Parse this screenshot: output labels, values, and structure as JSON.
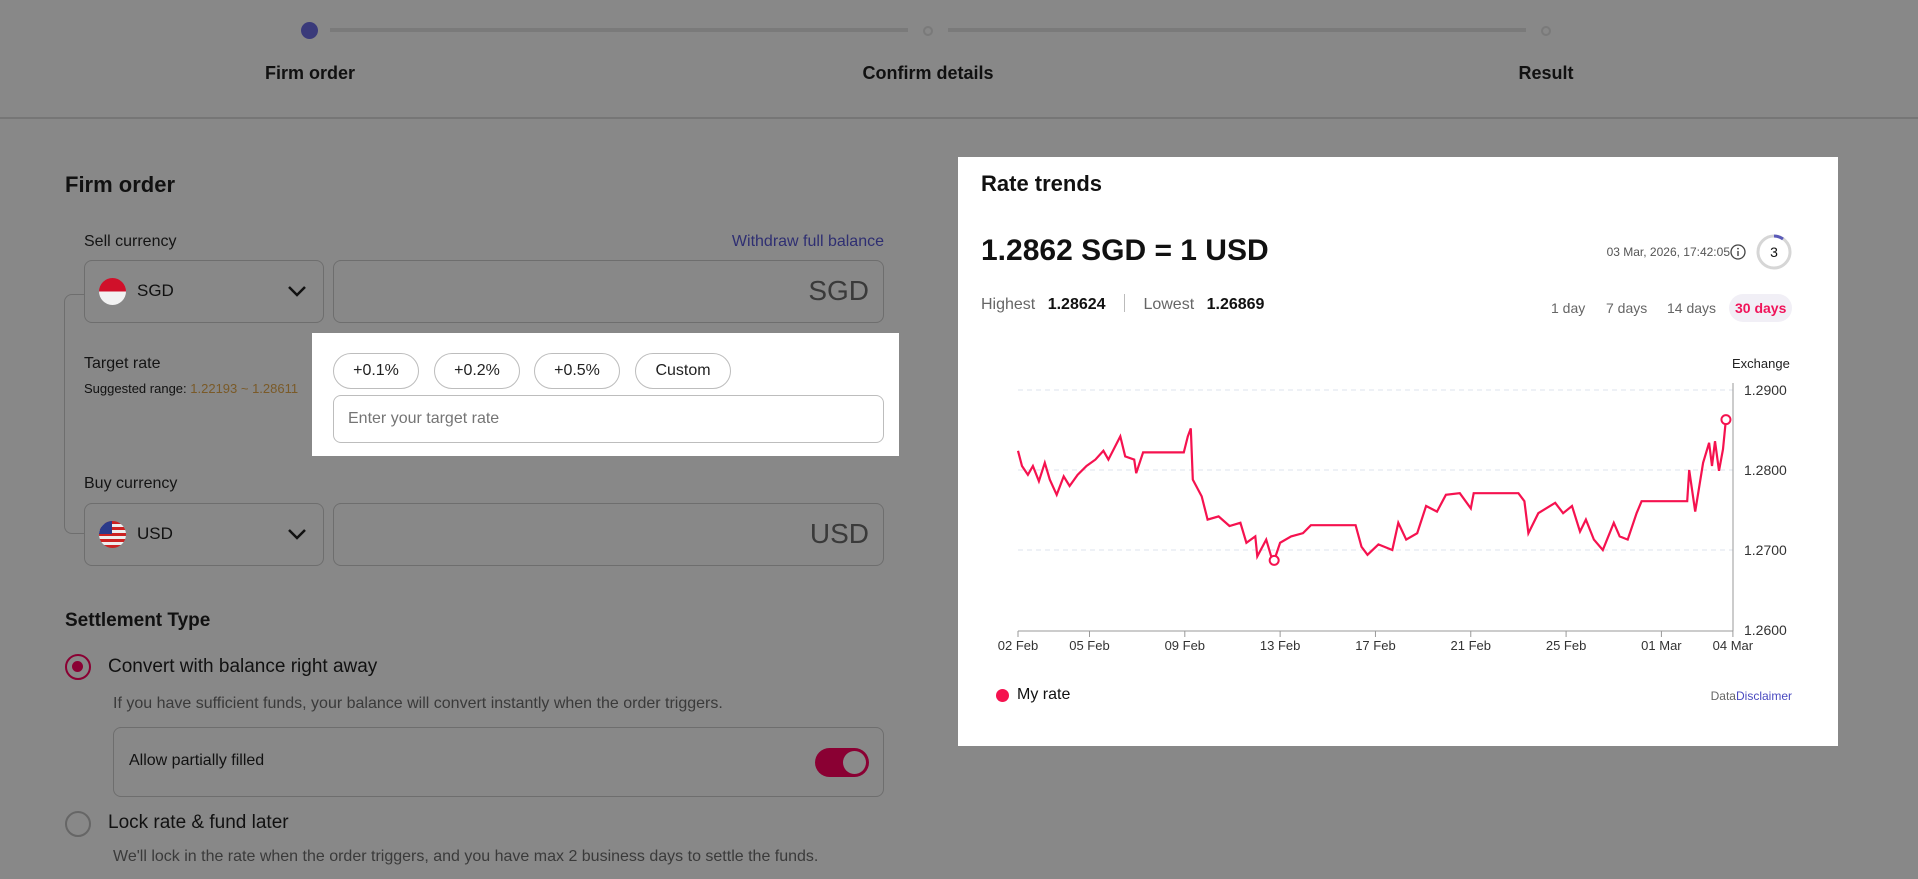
{
  "stepper": {
    "steps": [
      {
        "label": "Firm order",
        "active": true
      },
      {
        "label": "Confirm details",
        "active": false
      },
      {
        "label": "Result",
        "active": false
      }
    ]
  },
  "form": {
    "title": "Firm order",
    "sell": {
      "label": "Sell currency",
      "withdraw_link": "Withdraw full balance",
      "currency": "SGD",
      "amount_placeholder": "SGD",
      "flag_icon": "singapore-flag-icon"
    },
    "target": {
      "label": "Target rate",
      "suggested_prefix": "Suggested range:",
      "suggested_range": "1.22193 ~ 1.28611",
      "chips": [
        "+0.1%",
        "+0.2%",
        "+0.5%",
        "Custom"
      ],
      "placeholder": "Enter your target rate"
    },
    "buy": {
      "label": "Buy currency",
      "currency": "USD",
      "amount_placeholder": "USD",
      "flag_icon": "us-flag-icon"
    },
    "settlement": {
      "title": "Settlement Type",
      "options": [
        {
          "label": "Convert with balance right away",
          "desc": "If you have sufficient funds, your balance will convert instantly when the order triggers.",
          "selected": true
        },
        {
          "label": "Lock rate & fund later",
          "desc": "We'll lock in the rate when the order triggers, and you have max 2 business days to settle the funds.",
          "selected": false
        }
      ],
      "toggle": {
        "label": "Allow partially filled",
        "on": true
      }
    }
  },
  "rate_panel": {
    "title": "Rate trends",
    "rate": "1.2862 SGD = 1 USD",
    "timestamp": "03 Mar, 2026, 17:42:05",
    "refresh_countdown": "3",
    "highest_label": "Highest",
    "highest": "1.28624",
    "lowest_label": "Lowest",
    "lowest": "1.26869",
    "ranges": [
      "1 day",
      "7 days",
      "14 days",
      "30 days"
    ],
    "active_range": "30 days",
    "legend": "My rate",
    "disclaimer_prefix": "Data",
    "disclaimer_link": "Disclaimer"
  },
  "colors": {
    "line": "#f5124f",
    "accent": "#8a0033",
    "link": "#2f2f72",
    "range_text": "#7a5a28"
  },
  "chart_data": {
    "type": "line",
    "ylabel": "Exchange",
    "ylim": [
      1.26,
      1.29
    ],
    "yticks": [
      "1.2900",
      "1.2800",
      "1.2700",
      "1.2600"
    ],
    "ytick_values": [
      1.29,
      1.28,
      1.27,
      1.26
    ],
    "xticks": [
      "02 Feb",
      "05 Feb",
      "09 Feb",
      "13 Feb",
      "17 Feb",
      "21 Feb",
      "25 Feb",
      "01 Mar",
      "04 Mar"
    ],
    "xtick_dates": [
      "2026-02-02",
      "2026-02-05",
      "2026-02-09",
      "2026-02-13",
      "2026-02-17",
      "2026-02-21",
      "2026-02-25",
      "2026-03-01",
      "2026-03-04"
    ],
    "grid": "horizontal dashed",
    "legend_position": "bottom-left",
    "series": [
      {
        "name": "My rate",
        "points": [
          [
            "2026-02-02T00:00",
            1.2824
          ],
          [
            "2026-02-02T04:00",
            1.2805
          ],
          [
            "2026-02-02T10:00",
            1.2794
          ],
          [
            "2026-02-02T15:00",
            1.2805
          ],
          [
            "2026-02-02T21:00",
            1.2786
          ],
          [
            "2026-02-03T03:00",
            1.2809
          ],
          [
            "2026-02-03T08:00",
            1.2788
          ],
          [
            "2026-02-03T15:00",
            1.2769
          ],
          [
            "2026-02-03T22:00",
            1.2792
          ],
          [
            "2026-02-04T04:00",
            1.278
          ],
          [
            "2026-02-04T12:00",
            1.2794
          ],
          [
            "2026-02-04T21:00",
            1.2805
          ],
          [
            "2026-02-05T06:00",
            1.2813
          ],
          [
            "2026-02-05T14:00",
            1.2824
          ],
          [
            "2026-02-05T19:00",
            1.2813
          ],
          [
            "2026-02-06T07:00",
            1.2842
          ],
          [
            "2026-02-06T12:00",
            1.2817
          ],
          [
            "2026-02-06T21:00",
            1.2813
          ],
          [
            "2026-02-06T23:00",
            1.2796
          ],
          [
            "2026-02-07T06:00",
            1.2822
          ],
          [
            "2026-02-08T23:00",
            1.2822
          ],
          [
            "2026-02-09T03:00",
            1.2842
          ],
          [
            "2026-02-09T06:00",
            1.2852
          ],
          [
            "2026-02-09T08:00",
            1.2788
          ],
          [
            "2026-02-09T17:00",
            1.2767
          ],
          [
            "2026-02-09T23:00",
            1.2738
          ],
          [
            "2026-02-10T10:00",
            1.2742
          ],
          [
            "2026-02-10T21:00",
            1.273
          ],
          [
            "2026-02-11T08:00",
            1.2734
          ],
          [
            "2026-02-11T14:00",
            1.2709
          ],
          [
            "2026-02-11T23:00",
            1.2717
          ],
          [
            "2026-02-12T01:00",
            1.2692
          ],
          [
            "2026-02-12T10:00",
            1.2713
          ],
          [
            "2026-02-12T15:00",
            1.2692
          ],
          [
            "2026-02-12T18:00",
            1.2687
          ],
          [
            "2026-02-13T00:00",
            1.2709
          ],
          [
            "2026-02-13T11:00",
            1.2717
          ],
          [
            "2026-02-13T23:00",
            1.2721
          ],
          [
            "2026-02-14T07:00",
            1.2731
          ],
          [
            "2026-02-16T04:00",
            1.2731
          ],
          [
            "2026-02-16T10:00",
            1.2704
          ],
          [
            "2026-02-16T16:00",
            1.2694
          ],
          [
            "2026-02-17T03:00",
            1.2707
          ],
          [
            "2026-02-17T17:00",
            1.27
          ],
          [
            "2026-02-17T23:00",
            1.2734
          ],
          [
            "2026-02-18T07:00",
            1.2713
          ],
          [
            "2026-02-18T18:00",
            1.2721
          ],
          [
            "2026-02-19T03:00",
            1.2755
          ],
          [
            "2026-02-19T14:00",
            1.2748
          ],
          [
            "2026-02-19T23:00",
            1.2769
          ],
          [
            "2026-02-20T13:00",
            1.2771
          ],
          [
            "2026-02-21T00:00",
            1.2752
          ],
          [
            "2026-02-21T03:00",
            1.2771
          ],
          [
            "2026-02-23T00:00",
            1.2771
          ],
          [
            "2026-02-23T06:00",
            1.2761
          ],
          [
            "2026-02-23T10:00",
            1.2721
          ],
          [
            "2026-02-23T20:00",
            1.2746
          ],
          [
            "2026-02-24T13:00",
            1.2759
          ],
          [
            "2026-02-24T21:00",
            1.2746
          ],
          [
            "2026-02-25T06:00",
            1.2755
          ],
          [
            "2026-02-25T14:00",
            1.2723
          ],
          [
            "2026-02-25T20:00",
            1.2738
          ],
          [
            "2026-02-26T04:00",
            1.2713
          ],
          [
            "2026-02-26T13:00",
            1.27
          ],
          [
            "2026-02-27T00:00",
            1.2734
          ],
          [
            "2026-02-27T06:00",
            1.2717
          ],
          [
            "2026-02-27T14:00",
            1.2713
          ],
          [
            "2026-02-27T23:00",
            1.2746
          ],
          [
            "2026-02-28T04:00",
            1.2761
          ],
          [
            "2026-03-02T02:00",
            1.2761
          ],
          [
            "2026-03-02T04:00",
            1.28
          ],
          [
            "2026-03-02T10:00",
            1.2748
          ],
          [
            "2026-03-02T18:00",
            1.2809
          ],
          [
            "2026-03-03T00:00",
            1.2834
          ],
          [
            "2026-03-03T03:00",
            1.2805
          ],
          [
            "2026-03-03T06:00",
            1.2836
          ],
          [
            "2026-03-03T10:00",
            1.2799
          ],
          [
            "2026-03-03T14:00",
            1.2826
          ],
          [
            "2026-03-03T17:00",
            1.2863
          ]
        ]
      }
    ],
    "markers": [
      {
        "label": "lowest",
        "x": "2026-02-12T18:00",
        "y": 1.2687
      },
      {
        "label": "current",
        "x": "2026-03-03T17:00",
        "y": 1.2863
      }
    ]
  }
}
